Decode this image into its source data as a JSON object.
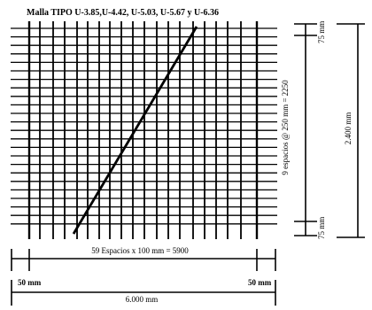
{
  "figure": {
    "title": "Malla TIPO U-3.85,U-4.42, U-5.03, U-5.67 y U-6.36",
    "dims": {
      "length_spacing": "59 Espacios x 100 mm = 5900",
      "end_left": "50 mm",
      "end_right": "50 mm",
      "total_length": "6.000 mm",
      "height_spacing": "9 espacios @ 250 mm = 2250",
      "end_top": "75 mm",
      "end_bottom": "75 mm",
      "total_height": "2.400 mm"
    }
  }
}
